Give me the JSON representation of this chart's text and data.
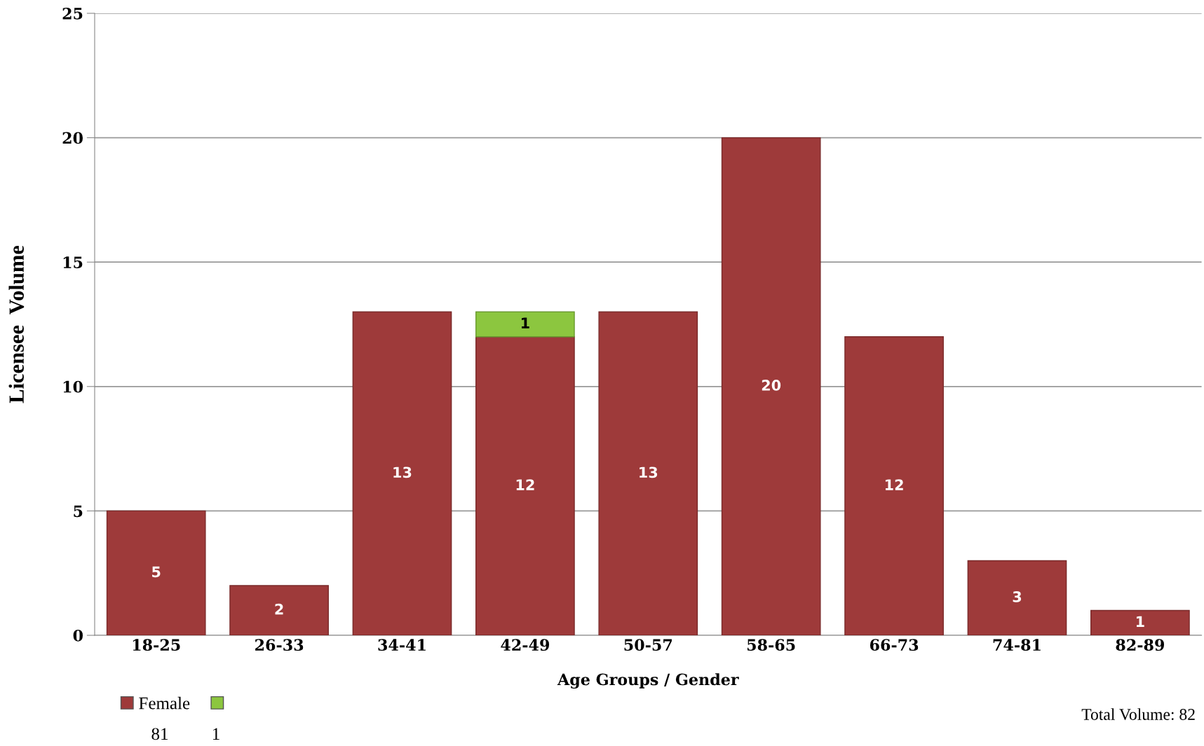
{
  "chart_data": {
    "type": "bar",
    "stacked": true,
    "xlabel": "Age Groups / Gender",
    "ylabel": "Licensee  Volume",
    "categories": [
      "18-25",
      "26-33",
      "34-41",
      "42-49",
      "50-57",
      "58-65",
      "66-73",
      "74-81",
      "82-89"
    ],
    "series": [
      {
        "name": "Female",
        "color": "#9e3a3a",
        "values": [
          5,
          2,
          13,
          12,
          13,
          20,
          12,
          3,
          1
        ]
      },
      {
        "color": "#8cc63f",
        "values": [
          null,
          null,
          null,
          1,
          null,
          null,
          null,
          null,
          null
        ]
      }
    ],
    "ylim": [
      0,
      25
    ],
    "yticks": [
      0,
      5,
      10,
      15,
      20,
      25
    ],
    "grid": "y",
    "data_labels": true,
    "legend": "bottom left",
    "annotations": [
      "81",
      "1",
      "Total Volume: 82"
    ]
  }
}
